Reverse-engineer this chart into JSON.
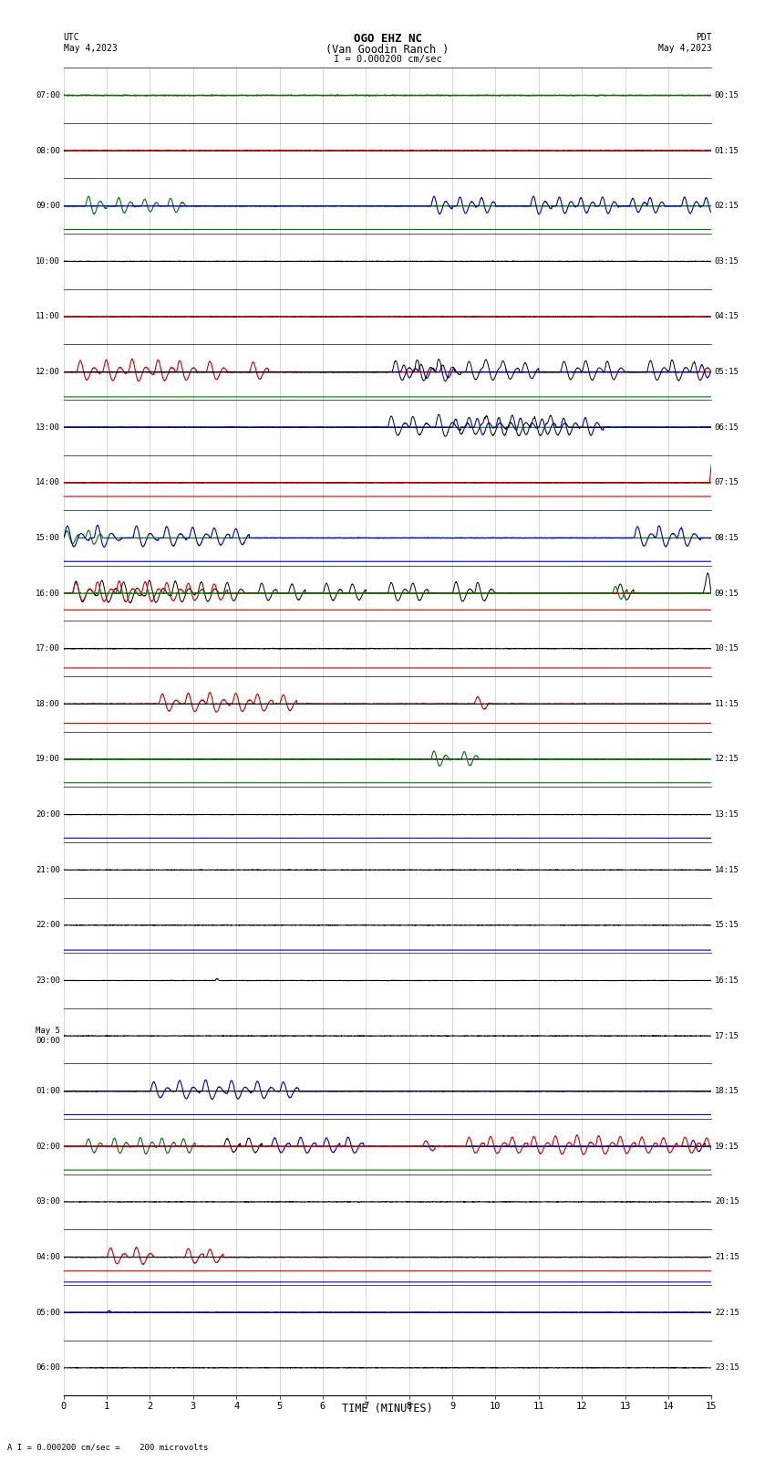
{
  "title_line1": "OGO EHZ NC",
  "title_line2": "(Van Goodin Ranch )",
  "title_line3": "I = 0.000200 cm/sec",
  "left_header_line1": "UTC",
  "left_header_line2": "May 4,2023",
  "right_header_line1": "PDT",
  "right_header_line2": "May 4,2023",
  "footer": "A I = 0.000200 cm/sec =    200 microvolts",
  "xlabel": "TIME (MINUTES)",
  "xlim": [
    0,
    15
  ],
  "xticks": [
    0,
    1,
    2,
    3,
    4,
    5,
    6,
    7,
    8,
    9,
    10,
    11,
    12,
    13,
    14,
    15
  ],
  "num_rows": 24,
  "left_times": [
    "07:00",
    "08:00",
    "09:00",
    "10:00",
    "11:00",
    "12:00",
    "13:00",
    "14:00",
    "15:00",
    "16:00",
    "17:00",
    "18:00",
    "19:00",
    "20:00",
    "21:00",
    "22:00",
    "23:00",
    "May 5\n00:00",
    "01:00",
    "02:00",
    "03:00",
    "04:00",
    "05:00",
    "06:00"
  ],
  "right_times": [
    "00:15",
    "01:15",
    "02:15",
    "03:15",
    "04:15",
    "05:15",
    "06:15",
    "07:15",
    "08:15",
    "09:15",
    "10:15",
    "11:15",
    "12:15",
    "13:15",
    "14:15",
    "15:15",
    "16:15",
    "17:15",
    "18:15",
    "19:15",
    "20:15",
    "21:15",
    "22:15",
    "23:15"
  ],
  "bg_color": "#ffffff",
  "grid_color": "#888888",
  "fig_width": 8.5,
  "fig_height": 16.13
}
